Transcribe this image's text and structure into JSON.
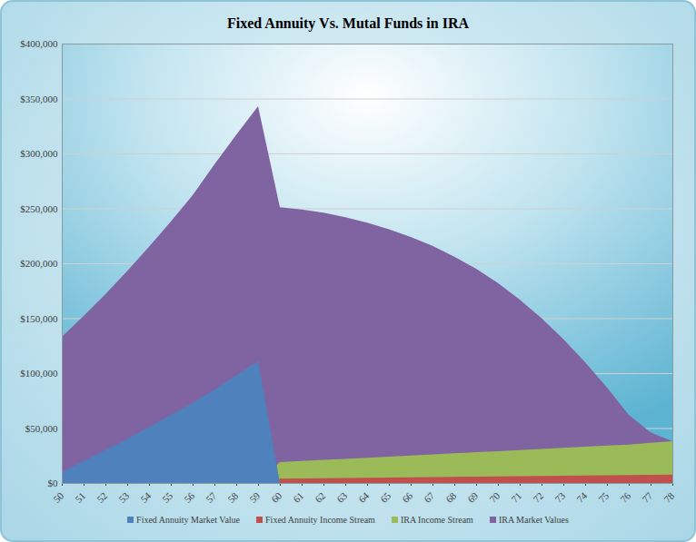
{
  "chart_data": {
    "type": "area",
    "title": "Fixed Annuity Vs. Mutal Funds in IRA",
    "x": [
      50,
      51,
      52,
      53,
      54,
      55,
      56,
      57,
      58,
      59,
      60,
      61,
      62,
      63,
      64,
      65,
      66,
      67,
      68,
      69,
      70,
      71,
      72,
      73,
      74,
      75,
      76,
      77,
      78
    ],
    "xlim": [
      50,
      78
    ],
    "xticks": [
      50,
      51,
      52,
      53,
      54,
      55,
      56,
      57,
      58,
      59,
      60,
      61,
      62,
      63,
      64,
      65,
      66,
      67,
      68,
      69,
      70,
      71,
      72,
      73,
      74,
      75,
      76,
      77,
      78
    ],
    "ylim": [
      0,
      400000
    ],
    "yticks": [
      {
        "value": 0,
        "label": "$0"
      },
      {
        "value": 50000,
        "label": "$50,000"
      },
      {
        "value": 100000,
        "label": "$100,000"
      },
      {
        "value": 150000,
        "label": "$150,000"
      },
      {
        "value": 200000,
        "label": "$200,000"
      },
      {
        "value": 250000,
        "label": "$250,000"
      },
      {
        "value": 300000,
        "label": "$300,000"
      },
      {
        "value": 350000,
        "label": "$350,000"
      },
      {
        "value": 400000,
        "label": "$400,000"
      }
    ],
    "grid": true,
    "stacked": false,
    "legend": "bottom",
    "series": [
      {
        "name": "Fixed Annuity Market Value",
        "color": "#4f81bd",
        "values": [
          10000,
          20000,
          30000,
          40000,
          51000,
          62000,
          73000,
          85000,
          98000,
          111000,
          0,
          0,
          0,
          0,
          0,
          0,
          0,
          0,
          0,
          0,
          0,
          0,
          0,
          0,
          0,
          0,
          0,
          0,
          0
        ]
      },
      {
        "name": "Fixed Annuity Income Stream",
        "color": "#c0504d",
        "values": [
          0,
          0,
          0,
          0,
          0,
          0,
          0,
          0,
          0,
          0,
          4000,
          4200,
          4400,
          4600,
          4800,
          5000,
          5200,
          5400,
          5600,
          5800,
          6000,
          6200,
          6400,
          6600,
          6800,
          7000,
          7200,
          7400,
          7600
        ]
      },
      {
        "name": "IRA Income Stream",
        "color": "#9bbb59",
        "values": [
          0,
          0,
          0,
          0,
          0,
          0,
          0,
          0,
          0,
          0,
          19000,
          20000,
          21000,
          22000,
          23000,
          24000,
          25000,
          26000,
          27000,
          28000,
          29000,
          30000,
          31000,
          32000,
          33000,
          34000,
          35000,
          36500,
          38000
        ]
      },
      {
        "name": "IRA Market Values",
        "color": "#8064a2",
        "values": [
          133000,
          152000,
          172000,
          193000,
          215000,
          238000,
          262000,
          290000,
          317000,
          343000,
          251000,
          249000,
          246000,
          242000,
          237000,
          231000,
          224000,
          216000,
          206000,
          195000,
          182000,
          167000,
          150000,
          131000,
          110000,
          87000,
          62000,
          46000,
          38000
        ]
      }
    ]
  }
}
